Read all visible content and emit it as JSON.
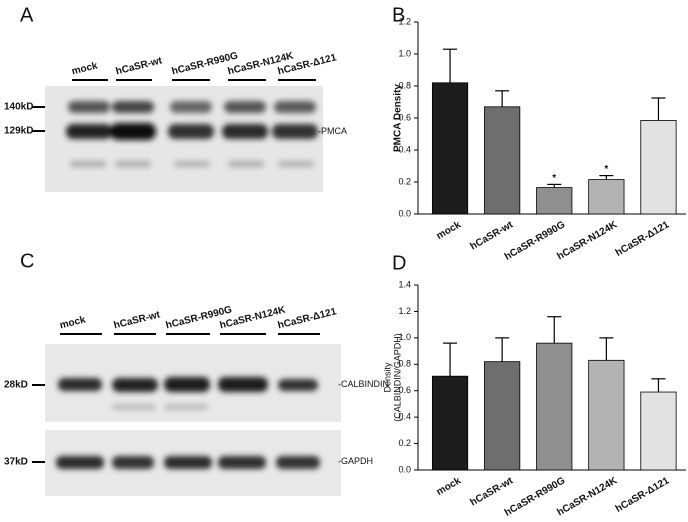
{
  "panels": [
    "A",
    "B",
    "C",
    "D"
  ],
  "blot_a": {
    "markers": [
      "140kD",
      "129kD"
    ],
    "band_label": "PMCA"
  },
  "blot_c": {
    "markers": [
      "28kD",
      "37kD"
    ],
    "band_labels": [
      "CALBINDIN",
      "GAPDH"
    ]
  },
  "chart_data": [
    {
      "type": "bar",
      "ylabel": [
        "PMCA Density"
      ],
      "categories": [
        "mock",
        "hCaSR-wt",
        "hCaSR-R990G",
        "hCaSR-N124K",
        "hCaSR-Δ121"
      ],
      "values": [
        0.82,
        0.67,
        0.165,
        0.215,
        0.585
      ],
      "errors": [
        0.21,
        0.1,
        0.02,
        0.025,
        0.14
      ],
      "colors": [
        "#1c1c1c",
        "#6e6e6e",
        "#8f8f8f",
        "#b3b3b3",
        "#e2e2e2"
      ],
      "annotations": [
        {
          "text": "*",
          "x": "hCaSR-R990G"
        },
        {
          "text": "*",
          "x": "hCaSR-N124K"
        }
      ],
      "ylim": [
        0,
        1.2
      ],
      "yticks": [
        {
          "value": 0,
          "label": "0.0"
        },
        0.2,
        0.4,
        0.6,
        0.8,
        {
          "value": 1,
          "label": "1.0"
        },
        1.2
      ],
      "grid": false
    },
    {
      "type": "bar",
      "ylabel": [
        "Density",
        "(CALBINDIN/GAPDH)"
      ],
      "categories": [
        "mock",
        "hCaSR-wt",
        "hCaSR-R990G",
        "hCaSR-N124K",
        "hCaSR-Δ121"
      ],
      "values": [
        0.71,
        0.82,
        0.96,
        0.83,
        0.59
      ],
      "errors": [
        0.25,
        0.18,
        0.2,
        0.17,
        0.1
      ],
      "colors": [
        "#1c1c1c",
        "#6e6e6e",
        "#8f8f8f",
        "#b3b3b3",
        "#e2e2e2"
      ],
      "ylim": [
        0,
        1.4
      ],
      "yticks": [
        {
          "value": 0,
          "label": "0.0"
        },
        0.2,
        0.4,
        0.6,
        0.8,
        {
          "value": 1,
          "label": "1.0"
        },
        1.2,
        1.4
      ],
      "grid": false
    }
  ]
}
